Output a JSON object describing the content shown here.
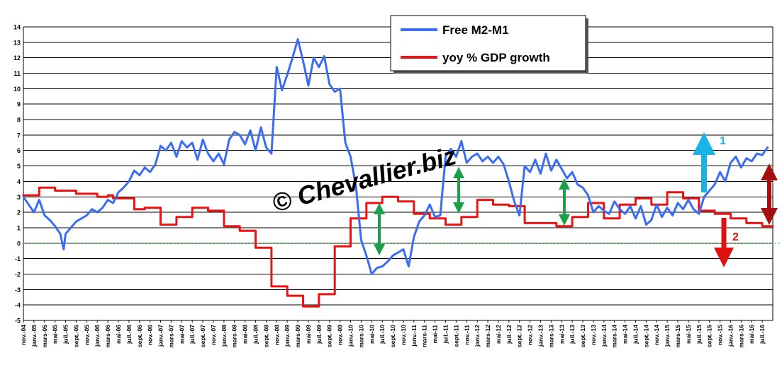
{
  "colors": {
    "series_m2m1": "#3a6cf4",
    "series_gdp": "#ee1111",
    "zero_line": "#22bb22",
    "arrow_green": "#1aa14a",
    "arrow_cyan": "#19b3e6",
    "arrow_red": "#e01010",
    "arrow_darkred": "#a50f0f",
    "label_cyan": "#19b3e6",
    "label_red": "#e01010",
    "watermark": "#000000"
  },
  "watermark": "© Chevallier.biz",
  "annotations": {
    "label_1": "1",
    "label_2": "2"
  },
  "chart_data": {
    "type": "line",
    "ylim": [
      -5,
      14
    ],
    "y_ticks": [
      14,
      13,
      12,
      11,
      10,
      9,
      8,
      7,
      6,
      5,
      4,
      3,
      2,
      1,
      0,
      -1,
      -2,
      -3,
      -4,
      -5
    ],
    "x_range": [
      "2004-11",
      "2016-09"
    ],
    "x_tick_labels": [
      "nov.-04",
      "janv.-05",
      "mars-05",
      "mai-05",
      "juil.-05",
      "sept.-05",
      "nov.-05",
      "janv.-06",
      "mars-06",
      "mai-06",
      "juil.-06",
      "sept.-06",
      "nov.-06",
      "janv.-07",
      "mars-07",
      "mai-07",
      "juil.-07",
      "sept.-07",
      "nov.-07",
      "janv.-08",
      "mars-08",
      "mai-08",
      "juil.-08",
      "sept.-08",
      "nov.-08",
      "janv.-09",
      "mars-09",
      "mai-09",
      "juil.-09",
      "sept.-09",
      "nov.-09",
      "janv.-10",
      "mars-10",
      "mai-10",
      "juil.-10",
      "sept.-10",
      "nov.-10",
      "janv.-11",
      "mars-11",
      "mai-11",
      "juil.-11",
      "sept.-11",
      "nov.-11",
      "janv.-12",
      "mars-12",
      "mai-12",
      "juil.-12",
      "sept.-12",
      "nov.-12",
      "janv.-13",
      "mars-13",
      "mai-13",
      "juil.-13",
      "sept.-13",
      "nov.-13",
      "janv.-14",
      "mars-14",
      "mai-14",
      "juil.-14",
      "sept.-14",
      "nov.-14",
      "janv.-15",
      "mars-15",
      "mai-15",
      "juil.-15",
      "sept.-15",
      "nov.-15",
      "janv.-16",
      "mars-16",
      "mai-16",
      "juil.-16"
    ],
    "grid": "horizontal",
    "legend": {
      "placement": "top-center",
      "entries": [
        "Free M2-M1",
        "yoy % GDP growth"
      ]
    },
    "series": [
      {
        "name": "Free M2-M1",
        "points": [
          [
            "2004-11",
            3.0
          ],
          [
            "2005-01",
            2.0
          ],
          [
            "2005-02",
            2.8
          ],
          [
            "2005-03",
            1.8
          ],
          [
            "2005-04",
            1.5
          ],
          [
            "2005-05",
            1.1
          ],
          [
            "2005-06",
            0.6
          ],
          [
            "2005-06-20",
            -0.4
          ],
          [
            "2005-07",
            0.6
          ],
          [
            "2005-08",
            1.0
          ],
          [
            "2005-09",
            1.4
          ],
          [
            "2005-10",
            1.6
          ],
          [
            "2005-11",
            1.8
          ],
          [
            "2005-12",
            2.2
          ],
          [
            "2006-01",
            2.0
          ],
          [
            "2006-02",
            2.3
          ],
          [
            "2006-03",
            2.8
          ],
          [
            "2006-04",
            2.6
          ],
          [
            "2006-05",
            3.3
          ],
          [
            "2006-06",
            3.6
          ],
          [
            "2006-07",
            4.0
          ],
          [
            "2006-08",
            4.7
          ],
          [
            "2006-09",
            4.4
          ],
          [
            "2006-10",
            4.9
          ],
          [
            "2006-11",
            4.6
          ],
          [
            "2006-12",
            5.1
          ],
          [
            "2007-01",
            6.3
          ],
          [
            "2007-02",
            6.0
          ],
          [
            "2007-03",
            6.5
          ],
          [
            "2007-04",
            5.6
          ],
          [
            "2007-05",
            6.6
          ],
          [
            "2007-06",
            6.2
          ],
          [
            "2007-07",
            6.5
          ],
          [
            "2007-08",
            5.4
          ],
          [
            "2007-09",
            6.7
          ],
          [
            "2007-10",
            5.8
          ],
          [
            "2007-11",
            5.3
          ],
          [
            "2007-12",
            5.8
          ],
          [
            "2008-01",
            5.1
          ],
          [
            "2008-02",
            6.7
          ],
          [
            "2008-03",
            7.2
          ],
          [
            "2008-04",
            7.0
          ],
          [
            "2008-05",
            6.4
          ],
          [
            "2008-06",
            7.3
          ],
          [
            "2008-07",
            6.0
          ],
          [
            "2008-08",
            7.5
          ],
          [
            "2008-09",
            6.2
          ],
          [
            "2008-10",
            5.8
          ],
          [
            "2008-11",
            11.4
          ],
          [
            "2008-12",
            9.9
          ],
          [
            "2009-01",
            10.9
          ],
          [
            "2009-02",
            12.0
          ],
          [
            "2009-03",
            13.2
          ],
          [
            "2009-04",
            11.8
          ],
          [
            "2009-05",
            10.2
          ],
          [
            "2009-06",
            12.0
          ],
          [
            "2009-07",
            11.4
          ],
          [
            "2009-08",
            12.1
          ],
          [
            "2009-09",
            10.3
          ],
          [
            "2009-10",
            9.8
          ],
          [
            "2009-11",
            10.0
          ],
          [
            "2009-12",
            6.5
          ],
          [
            "2010-01",
            5.6
          ],
          [
            "2010-02",
            3.7
          ],
          [
            "2010-03",
            0.2
          ],
          [
            "2010-04",
            -0.8
          ],
          [
            "2010-05",
            -2.0
          ],
          [
            "2010-06",
            -1.6
          ],
          [
            "2010-07",
            -1.5
          ],
          [
            "2010-08",
            -1.2
          ],
          [
            "2010-09",
            -0.8
          ],
          [
            "2010-10",
            -0.6
          ],
          [
            "2010-11",
            -0.4
          ],
          [
            "2010-12",
            -1.5
          ],
          [
            "2011-01",
            0.4
          ],
          [
            "2011-02",
            1.4
          ],
          [
            "2011-03",
            1.8
          ],
          [
            "2011-04",
            2.5
          ],
          [
            "2011-05",
            1.7
          ],
          [
            "2011-06",
            1.8
          ],
          [
            "2011-07",
            5.6
          ],
          [
            "2011-08",
            6.1
          ],
          [
            "2011-09",
            5.6
          ],
          [
            "2011-10",
            6.6
          ],
          [
            "2011-11",
            5.2
          ],
          [
            "2011-12",
            5.6
          ],
          [
            "2012-01",
            5.8
          ],
          [
            "2012-02",
            5.3
          ],
          [
            "2012-03",
            5.6
          ],
          [
            "2012-04",
            5.2
          ],
          [
            "2012-05",
            5.6
          ],
          [
            "2012-06",
            5.1
          ],
          [
            "2012-07",
            4.0
          ],
          [
            "2012-08",
            2.7
          ],
          [
            "2012-09",
            1.8
          ],
          [
            "2012-10",
            5.0
          ],
          [
            "2012-11",
            4.6
          ],
          [
            "2012-12",
            5.4
          ],
          [
            "2013-01",
            4.5
          ],
          [
            "2013-02",
            5.8
          ],
          [
            "2013-03",
            4.7
          ],
          [
            "2013-04",
            5.4
          ],
          [
            "2013-05",
            4.8
          ],
          [
            "2013-06",
            4.2
          ],
          [
            "2013-07",
            4.6
          ],
          [
            "2013-08",
            3.8
          ],
          [
            "2013-09",
            3.6
          ],
          [
            "2013-10",
            3.1
          ],
          [
            "2013-11",
            2.0
          ],
          [
            "2013-12",
            2.4
          ],
          [
            "2014-01",
            2.1
          ],
          [
            "2014-02",
            1.9
          ],
          [
            "2014-03",
            2.7
          ],
          [
            "2014-04",
            2.2
          ],
          [
            "2014-05",
            1.9
          ],
          [
            "2014-06",
            2.4
          ],
          [
            "2014-07",
            1.6
          ],
          [
            "2014-08",
            2.4
          ],
          [
            "2014-09",
            1.2
          ],
          [
            "2014-10",
            1.5
          ],
          [
            "2014-11",
            2.5
          ],
          [
            "2014-12",
            1.7
          ],
          [
            "2015-01",
            2.3
          ],
          [
            "2015-02",
            1.8
          ],
          [
            "2015-03",
            2.6
          ],
          [
            "2015-04",
            2.2
          ],
          [
            "2015-05",
            2.8
          ],
          [
            "2015-06",
            2.2
          ],
          [
            "2015-07",
            1.9
          ],
          [
            "2015-08",
            3.0
          ],
          [
            "2015-09",
            3.4
          ],
          [
            "2015-10",
            3.8
          ],
          [
            "2015-11",
            4.6
          ],
          [
            "2015-12",
            4.0
          ],
          [
            "2016-01",
            5.2
          ],
          [
            "2016-02",
            5.6
          ],
          [
            "2016-03",
            4.9
          ],
          [
            "2016-04",
            5.5
          ],
          [
            "2016-05",
            5.3
          ],
          [
            "2016-06",
            5.8
          ],
          [
            "2016-07",
            5.7
          ],
          [
            "2016-08",
            6.2
          ]
        ]
      },
      {
        "name": "yoy % GDP growth",
        "step": true,
        "points": [
          [
            "2004-11",
            3.1
          ],
          [
            "2005-02",
            3.6
          ],
          [
            "2005-05",
            3.4
          ],
          [
            "2005-09",
            3.2
          ],
          [
            "2006-01",
            3.0
          ],
          [
            "2006-03",
            3.1
          ],
          [
            "2006-04",
            2.9
          ],
          [
            "2006-08",
            2.2
          ],
          [
            "2006-10",
            2.3
          ],
          [
            "2007-01",
            1.2
          ],
          [
            "2007-04",
            1.7
          ],
          [
            "2007-07",
            2.3
          ],
          [
            "2007-10",
            2.1
          ],
          [
            "2008-01",
            1.1
          ],
          [
            "2008-04",
            0.8
          ],
          [
            "2008-07",
            -0.3
          ],
          [
            "2008-10",
            -2.8
          ],
          [
            "2009-01",
            -3.4
          ],
          [
            "2009-04",
            -4.1
          ],
          [
            "2009-07",
            -3.3
          ],
          [
            "2009-10",
            -0.2
          ],
          [
            "2010-01",
            1.6
          ],
          [
            "2010-04",
            2.6
          ],
          [
            "2010-07",
            3.0
          ],
          [
            "2010-10",
            2.7
          ],
          [
            "2011-01",
            1.9
          ],
          [
            "2011-04",
            1.6
          ],
          [
            "2011-07",
            1.2
          ],
          [
            "2011-10",
            1.7
          ],
          [
            "2012-01",
            2.8
          ],
          [
            "2012-04",
            2.5
          ],
          [
            "2012-07",
            2.4
          ],
          [
            "2012-10",
            1.3
          ],
          [
            "2013-01",
            1.3
          ],
          [
            "2013-04",
            1.1
          ],
          [
            "2013-07",
            1.7
          ],
          [
            "2013-10",
            2.6
          ],
          [
            "2014-01",
            1.6
          ],
          [
            "2014-04",
            2.5
          ],
          [
            "2014-07",
            2.9
          ],
          [
            "2014-10",
            2.5
          ],
          [
            "2015-01",
            3.3
          ],
          [
            "2015-04",
            2.9
          ],
          [
            "2015-07",
            2.1
          ],
          [
            "2015-10",
            1.9
          ],
          [
            "2016-01",
            1.6
          ],
          [
            "2016-04",
            1.3
          ],
          [
            "2016-07",
            1.1
          ],
          [
            "2016-09",
            1.1
          ]
        ]
      }
    ]
  }
}
